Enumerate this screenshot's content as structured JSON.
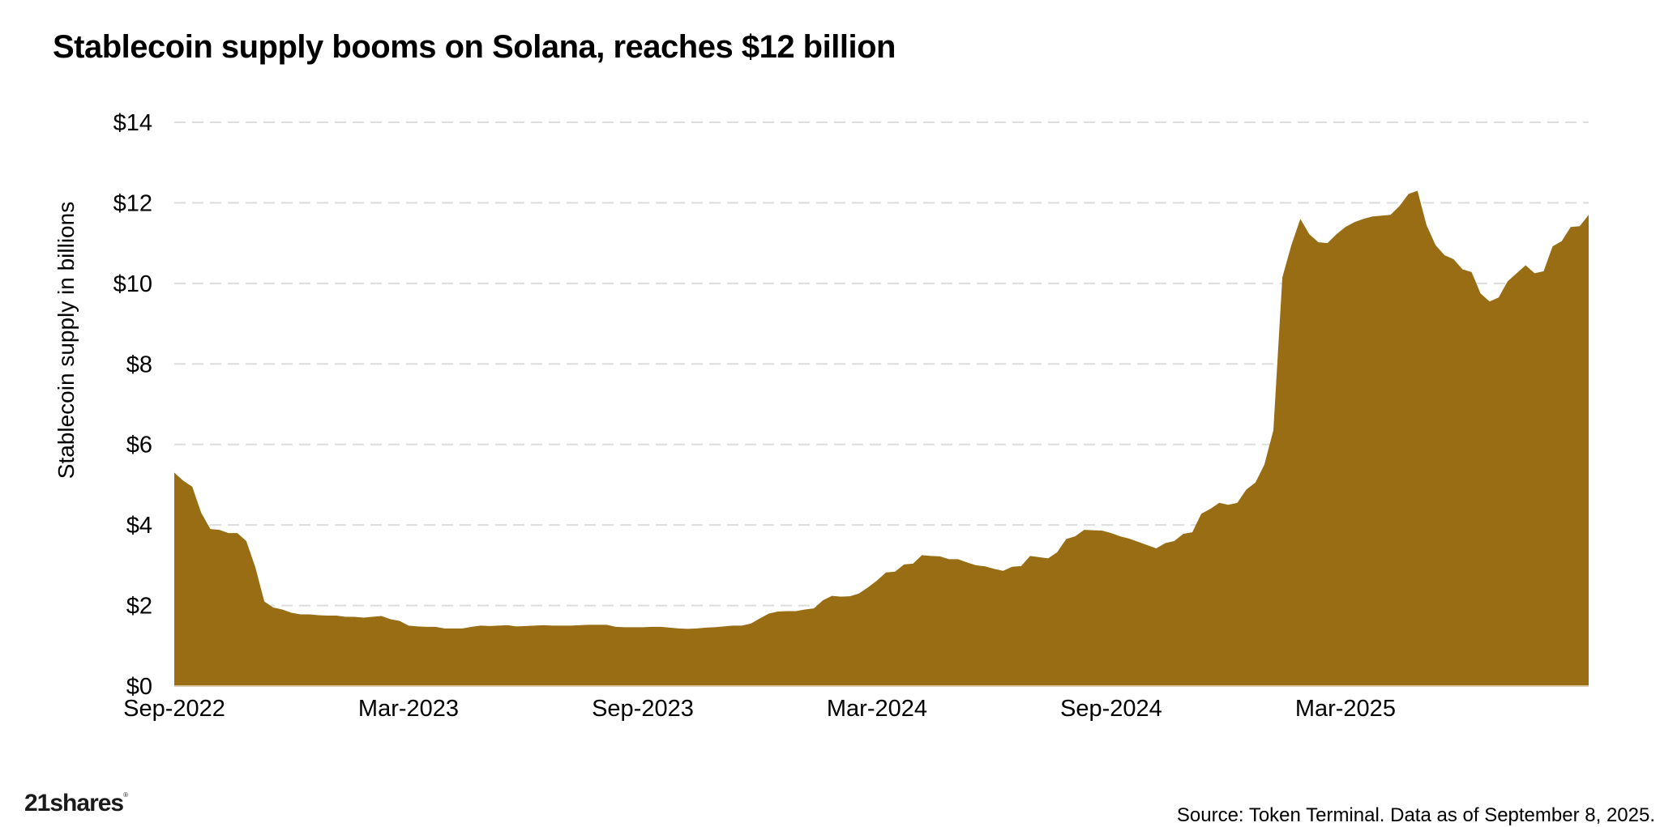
{
  "header": {
    "title": "Stablecoin supply booms on Solana, reaches $12 billion"
  },
  "footer": {
    "logo": "21shares",
    "source": "Source: Token Terminal. Data as of September 8, 2025."
  },
  "style": {
    "fill_color": "#986D14",
    "grid_color": "#DDDDDD"
  },
  "chart_data": {
    "type": "area",
    "title": "Stablecoin supply booms on Solana, reaches $12 billion",
    "xlabel": "",
    "ylabel": "Stablecoin supply in billions",
    "ylim": [
      0,
      14
    ],
    "yticks": [
      0,
      2,
      4,
      6,
      8,
      10,
      12,
      14
    ],
    "ytick_labels": [
      "$0",
      "$2",
      "$4",
      "$6",
      "$8",
      "$10",
      "$12",
      "$14"
    ],
    "xtick_labels": [
      "Sep-2022",
      "Mar-2023",
      "Sep-2023",
      "Mar-2024",
      "Sep-2024",
      "Mar-2025"
    ],
    "xtick_index": [
      0,
      26,
      52,
      78,
      104,
      130
    ],
    "x_start": "Sep-2022",
    "x_end": "Sep 8, 2025",
    "grid": "horizontal dashed",
    "legend": "none",
    "series": [
      {
        "name": "Solana stablecoin supply ($B)",
        "frequency": "weekly (approx.)",
        "values": [
          5.3,
          5.1,
          4.95,
          4.3,
          3.9,
          3.88,
          3.8,
          3.8,
          3.6,
          2.95,
          2.1,
          1.95,
          1.9,
          1.82,
          1.78,
          1.78,
          1.76,
          1.75,
          1.75,
          1.72,
          1.72,
          1.7,
          1.72,
          1.74,
          1.66,
          1.62,
          1.5,
          1.48,
          1.47,
          1.47,
          1.43,
          1.43,
          1.43,
          1.47,
          1.5,
          1.49,
          1.5,
          1.51,
          1.48,
          1.49,
          1.5,
          1.51,
          1.5,
          1.5,
          1.5,
          1.51,
          1.52,
          1.52,
          1.52,
          1.47,
          1.46,
          1.46,
          1.46,
          1.47,
          1.47,
          1.45,
          1.43,
          1.42,
          1.43,
          1.45,
          1.46,
          1.48,
          1.5,
          1.5,
          1.55,
          1.68,
          1.8,
          1.85,
          1.86,
          1.86,
          1.9,
          1.93,
          2.13,
          2.24,
          2.22,
          2.23,
          2.3,
          2.45,
          2.62,
          2.82,
          2.84,
          3.02,
          3.04,
          3.25,
          3.23,
          3.22,
          3.15,
          3.15,
          3.07,
          3.0,
          2.97,
          2.91,
          2.86,
          2.96,
          2.98,
          3.23,
          3.2,
          3.17,
          3.32,
          3.65,
          3.72,
          3.88,
          3.87,
          3.86,
          3.8,
          3.72,
          3.66,
          3.58,
          3.5,
          3.42,
          3.55,
          3.6,
          3.78,
          3.82,
          4.28,
          4.4,
          4.55,
          4.5,
          4.55,
          4.88,
          5.05,
          5.5,
          6.35,
          10.15,
          10.95,
          11.6,
          11.22,
          11.02,
          11.0,
          11.22,
          11.4,
          11.52,
          11.6,
          11.66,
          11.68,
          11.7,
          11.92,
          12.22,
          12.3,
          11.45,
          10.95,
          10.7,
          10.6,
          10.35,
          10.28,
          9.75,
          9.55,
          9.65,
          10.05,
          10.25,
          10.45,
          10.25,
          10.3,
          10.92,
          11.05,
          11.4,
          11.42,
          11.7
        ]
      }
    ],
    "annotations": []
  }
}
